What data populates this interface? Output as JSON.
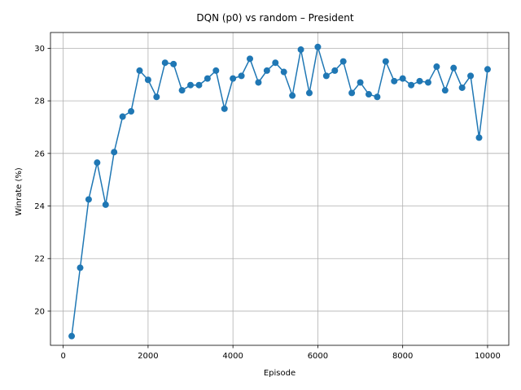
{
  "chart_data": {
    "type": "line",
    "title": "DQN (p0) vs random – President",
    "xlabel": "Episode",
    "ylabel": "Winrate (%)",
    "xlim": [
      -300,
      10500
    ],
    "ylim": [
      18.7,
      30.6
    ],
    "xticks": [
      0,
      2000,
      4000,
      6000,
      8000,
      10000
    ],
    "xtick_labels": [
      "0",
      "2000",
      "4000",
      "6000",
      "8000",
      "10000"
    ],
    "yticks": [
      20,
      22,
      24,
      26,
      28,
      30
    ],
    "ytick_labels": [
      "20",
      "22",
      "24",
      "26",
      "28",
      "30"
    ],
    "grid": true,
    "legend": "none",
    "series": [
      {
        "color": "#1f77b4",
        "marker": "circle",
        "x": [
          200,
          400,
          600,
          800,
          1000,
          1200,
          1400,
          1600,
          1800,
          2000,
          2200,
          2400,
          2600,
          2800,
          3000,
          3200,
          3400,
          3600,
          3800,
          4000,
          4200,
          4400,
          4600,
          4800,
          5000,
          5200,
          5400,
          5600,
          5800,
          6000,
          6200,
          6400,
          6600,
          6800,
          7000,
          7200,
          7400,
          7600,
          7800,
          8000,
          8200,
          8400,
          8600,
          8800,
          9000,
          9200,
          9400,
          9600,
          9800,
          10000
        ],
        "y": [
          19.05,
          21.65,
          24.25,
          25.65,
          24.05,
          26.05,
          27.4,
          27.6,
          29.15,
          28.8,
          28.15,
          29.45,
          29.4,
          28.4,
          28.6,
          28.6,
          28.85,
          29.15,
          27.7,
          28.85,
          28.95,
          29.6,
          28.7,
          29.15,
          29.45,
          29.1,
          28.2,
          29.95,
          28.3,
          30.05,
          28.95,
          29.15,
          29.5,
          28.3,
          28.7,
          28.25,
          28.15,
          29.5,
          28.75,
          28.85,
          28.6,
          28.75,
          28.7,
          29.3,
          28.4,
          29.25,
          28.5,
          28.95,
          26.6,
          29.2
        ]
      }
    ]
  }
}
